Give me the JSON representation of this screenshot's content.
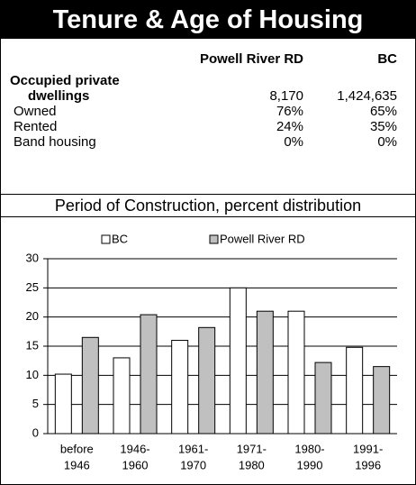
{
  "header": {
    "title": "Tenure & Age of Housing"
  },
  "table": {
    "columns": [
      "Powell River RD",
      "BC"
    ],
    "rows": [
      {
        "label": [
          "Occupied private",
          "dwellings"
        ],
        "values": [
          "8,170",
          "1,424,635"
        ]
      },
      {
        "label": [
          "Owned"
        ],
        "values": [
          "76%",
          "65%"
        ]
      },
      {
        "label": [
          "Rented"
        ],
        "values": [
          "24%",
          "35%"
        ]
      },
      {
        "label": [
          "Band housing"
        ],
        "values": [
          "0%",
          "0%"
        ]
      }
    ]
  },
  "chart_data": {
    "type": "bar",
    "title": "Period of Construction, percent distribution",
    "categories": [
      [
        "before",
        "1946"
      ],
      [
        "1946-",
        "1960"
      ],
      [
        "1961-",
        "1970"
      ],
      [
        "1971-",
        "1980"
      ],
      [
        "1980-",
        "1990"
      ],
      [
        "1991-",
        "1996"
      ]
    ],
    "series": [
      {
        "name": "BC",
        "color": "#ffffff",
        "values": [
          10.2,
          13,
          16,
          25,
          21,
          14.8
        ]
      },
      {
        "name": "Powell River RD",
        "color": "#c0c0c0",
        "values": [
          16.5,
          20.4,
          18.2,
          21,
          12.2,
          11.5
        ]
      }
    ],
    "ylim": [
      0,
      30
    ],
    "yticks": [
      0,
      5,
      10,
      15,
      20,
      25,
      30
    ],
    "grid": true,
    "legend": "top"
  }
}
